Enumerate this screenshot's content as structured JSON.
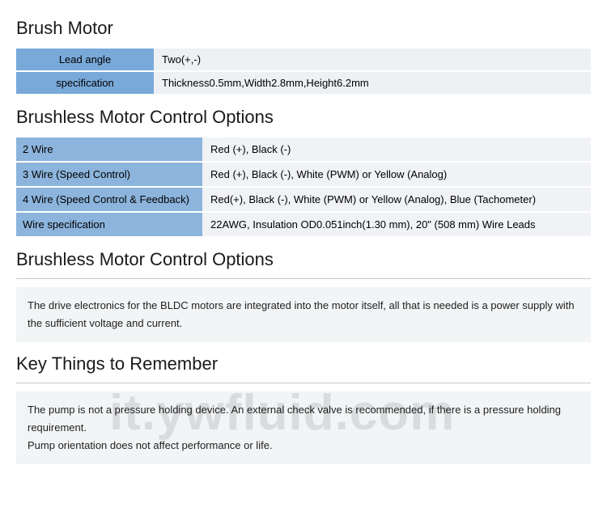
{
  "section1": {
    "title": "Brush Motor",
    "rows": [
      {
        "label": "Lead angle",
        "value": "Two(+,-)"
      },
      {
        "label": "specification",
        "value": "Thickness0.5mm,Width2.8mm,Height6.2mm"
      }
    ]
  },
  "section2": {
    "title": "Brushless Motor Control Options",
    "rows": [
      {
        "label": "2 Wire",
        "value": "Red (+), Black (-)"
      },
      {
        "label": "3 Wire (Speed Control)",
        "value": "Red (+), Black (-), White (PWM) or Yellow (Analog)"
      },
      {
        "label": "4 Wire (Speed Control & Feedback)",
        "value": "Red(+), Black (-), White (PWM) or Yellow (Analog), Blue (Tachometer)"
      },
      {
        "label": "Wire specification",
        "value": "22AWG, Insulation OD0.051inch(1.30 mm), 20\" (508 mm) Wire Leads"
      }
    ]
  },
  "section3": {
    "title": "Brushless Motor Control Options",
    "note": "The drive electronics for the BLDC motors are integrated into the motor itself, all that is needed is a power supply with the sufficient voltage and current."
  },
  "section4": {
    "title": "Key Things to Remember",
    "note": "The pump is not a pressure holding device. An external check valve is recommended, if there is a pressure holding requirement.\nPump orientation does not affect performance or life."
  },
  "watermark": "it.ywfluid.com",
  "colors": {
    "header_cell_bg_1": "#79a9d9",
    "header_cell_bg_2": "#8cb4dc",
    "value_cell_bg_1": "#eef1f4",
    "value_cell_bg_2": "#f0f2f5",
    "note_bg": "#f2f4f6",
    "divider": "#c8c8c8",
    "watermark_color": "rgba(0,0,0,0.10)"
  }
}
